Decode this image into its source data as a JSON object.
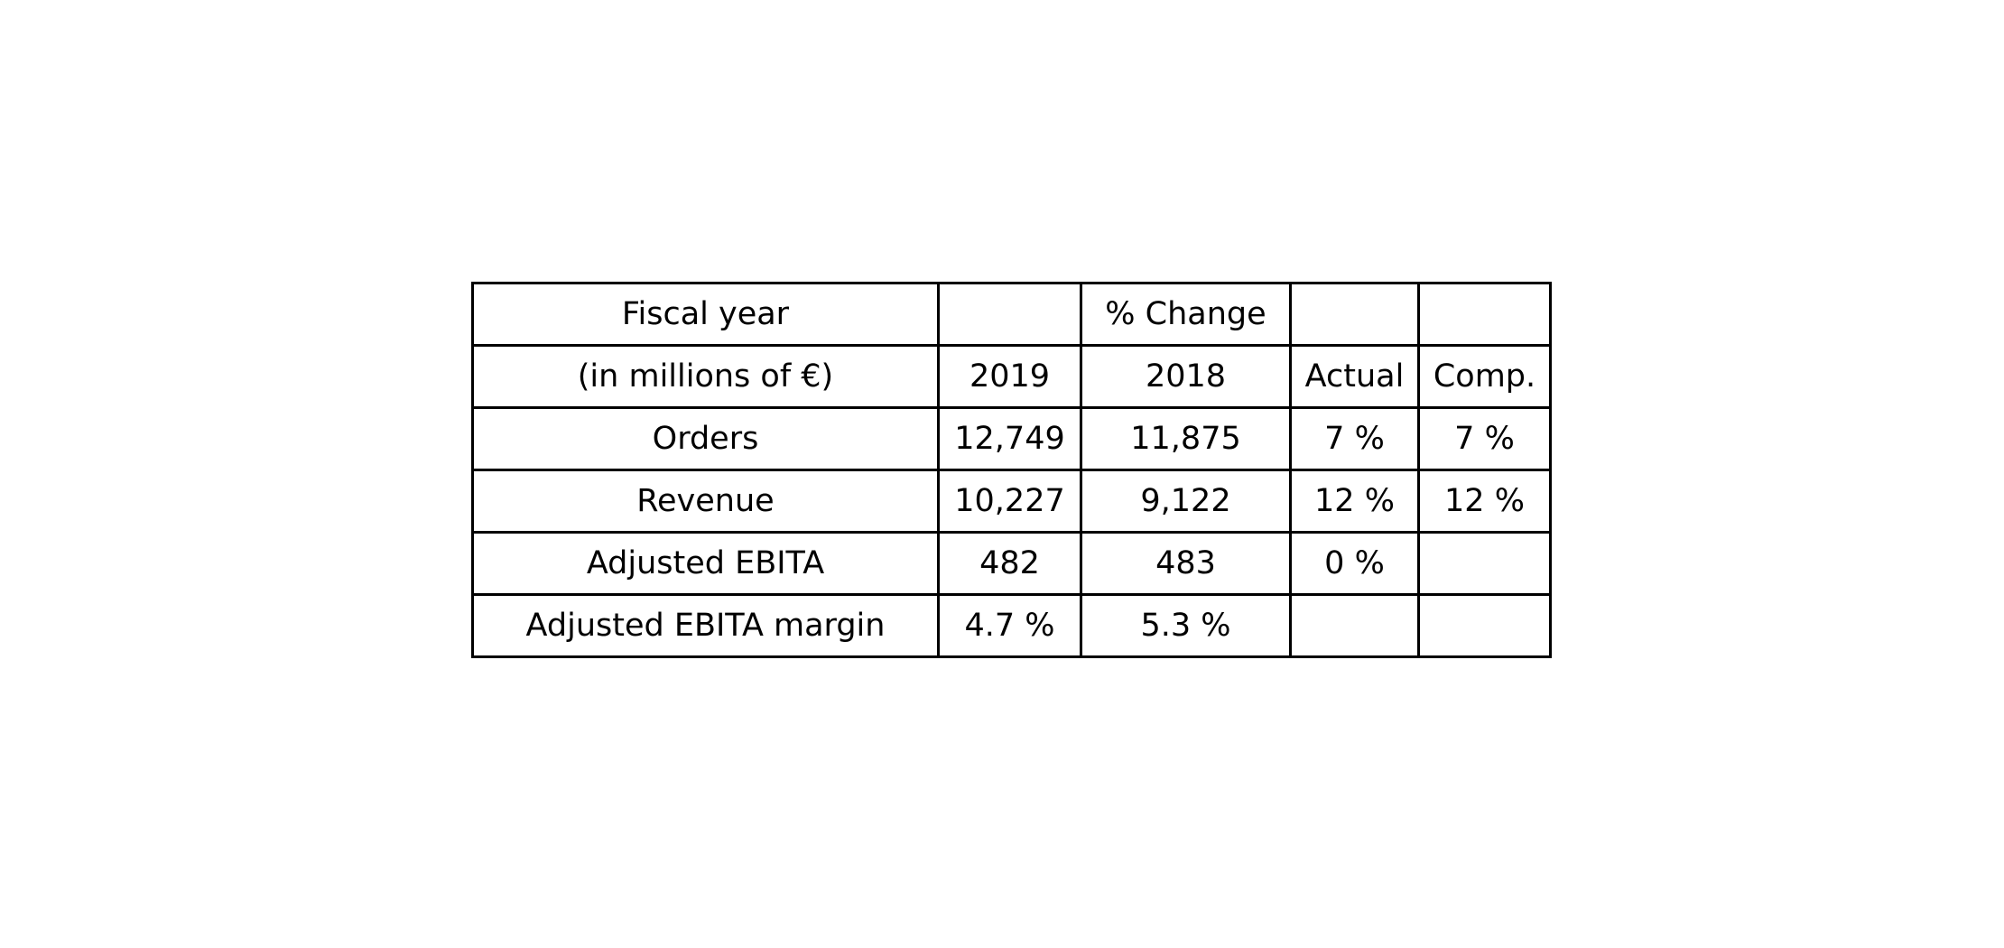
{
  "chart_data": {
    "type": "table",
    "rows": [
      [
        "Fiscal year",
        "",
        "% Change",
        "",
        ""
      ],
      [
        "(in millions of €)",
        "2019",
        "2018",
        "Actual",
        "Comp."
      ],
      [
        "Orders",
        "12,749",
        "11,875",
        "7 %",
        "7 %"
      ],
      [
        "Revenue",
        "10,227",
        "9,122",
        "12 %",
        "12 %"
      ],
      [
        "Adjusted EBITA",
        "482",
        "483",
        "0 %",
        ""
      ],
      [
        "Adjusted EBITA margin",
        "4.7 %",
        "5.3 %",
        "",
        ""
      ]
    ]
  }
}
